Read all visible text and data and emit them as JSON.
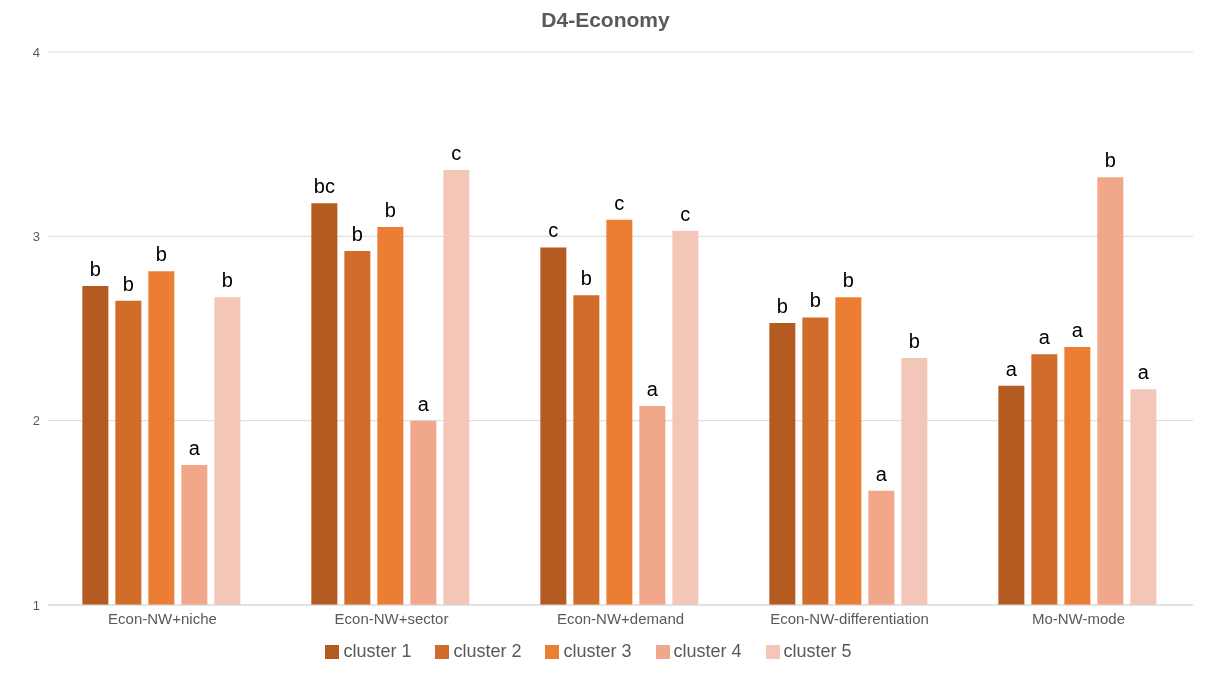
{
  "chart_data": {
    "type": "bar",
    "title": "D4-Economy",
    "categories": [
      "Econ-NW+niche",
      "Econ-NW+sector",
      "Econ-NW+demand",
      "Econ-NW-differentiation",
      "Mo-NW-mode"
    ],
    "series": [
      {
        "name": "cluster 1",
        "color": "#b45b22",
        "values": [
          2.73,
          3.18,
          2.94,
          2.53,
          2.19
        ],
        "value_labels": [
          "b",
          "bc",
          "c",
          "b",
          "a"
        ]
      },
      {
        "name": "cluster 2",
        "color": "#d26c2b",
        "values": [
          2.65,
          2.92,
          2.68,
          2.56,
          2.36
        ],
        "value_labels": [
          "b",
          "b",
          "b",
          "b",
          "a"
        ]
      },
      {
        "name": "cluster 3",
        "color": "#ec7e33",
        "values": [
          2.81,
          3.05,
          3.09,
          2.67,
          2.4
        ],
        "value_labels": [
          "b",
          "b",
          "c",
          "b",
          "a"
        ]
      },
      {
        "name": "cluster 4",
        "color": "#f0a78a",
        "values": [
          1.76,
          2.0,
          2.08,
          1.62,
          3.32
        ],
        "value_labels": [
          "a",
          "a",
          "a",
          "a",
          "b"
        ]
      },
      {
        "name": "cluster 5",
        "color": "#f4c6b7",
        "values": [
          2.67,
          3.36,
          3.03,
          2.34,
          2.17
        ],
        "value_labels": [
          "b",
          "c",
          "c",
          "b",
          "a"
        ]
      }
    ],
    "ylim": [
      1,
      4
    ],
    "yticks": [
      1,
      2,
      3,
      4
    ],
    "grid": "y",
    "legend": "bottom"
  }
}
